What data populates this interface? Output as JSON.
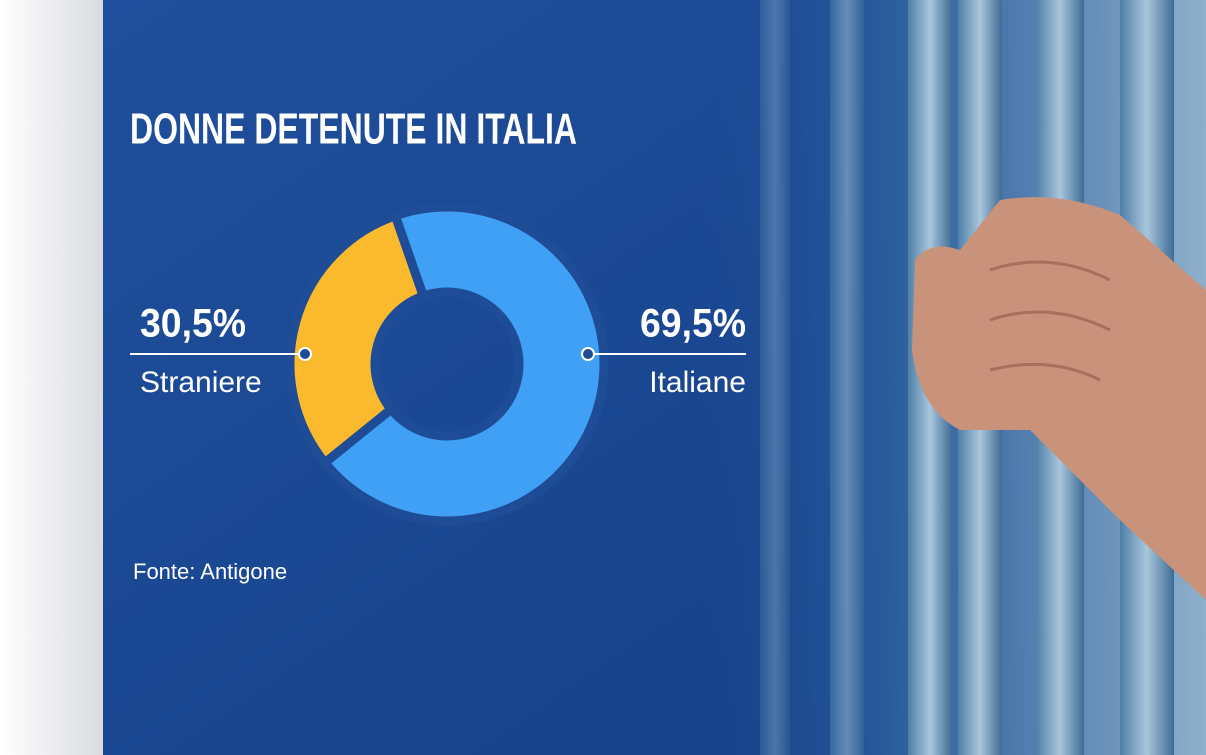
{
  "chart_data": {
    "type": "pie",
    "donut": true,
    "title": "DONNE DETENUTE IN ITALIA",
    "categories": [
      "Straniere",
      "Italiane"
    ],
    "values": [
      30.5,
      69.5
    ],
    "value_labels": [
      "30,5%",
      "69,5%"
    ],
    "colors": [
      "#fbb92e",
      "#40a0f5"
    ],
    "source": "Fonte: Antigone"
  }
}
